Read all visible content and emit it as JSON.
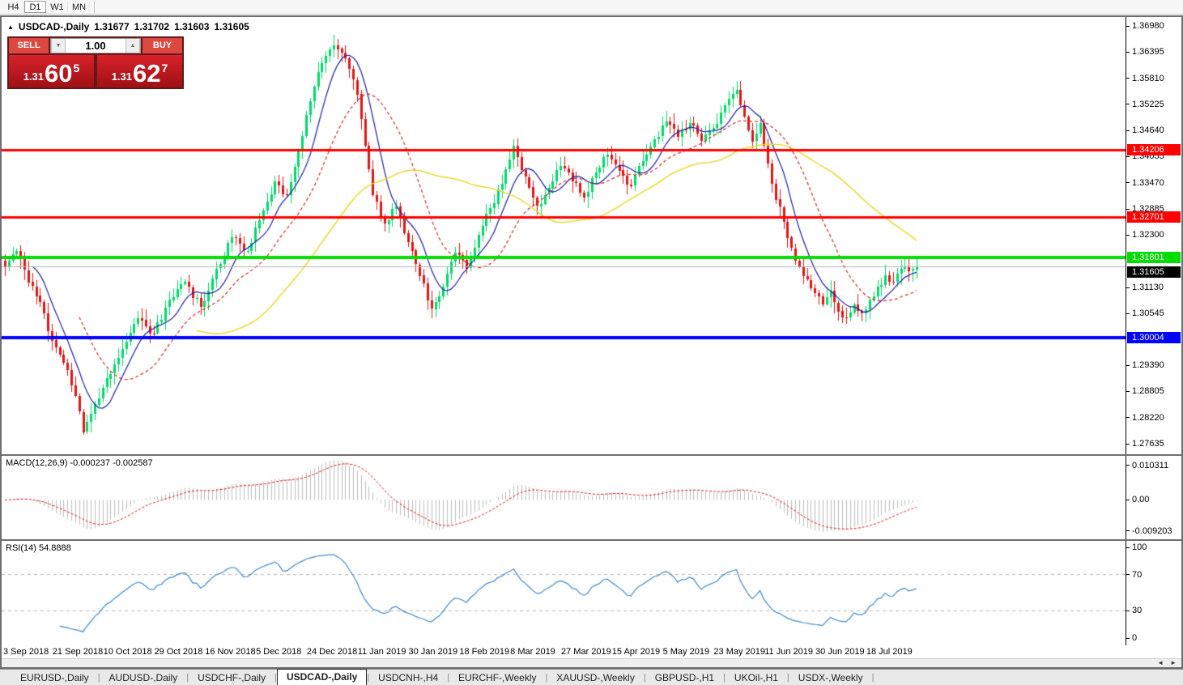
{
  "toolbar": {
    "timeframes": [
      {
        "label": "H4",
        "active": false
      },
      {
        "label": "D1",
        "active": true
      },
      {
        "label": "W1",
        "active": false
      },
      {
        "label": "MN",
        "active": false
      }
    ]
  },
  "chart": {
    "symbol": "USDCAD-,Daily",
    "open": "1.31677",
    "high": "1.31702",
    "low": "1.31603",
    "close": "1.31605",
    "collapse_icon": "▲"
  },
  "trade_panel": {
    "sell_label": "SELL",
    "buy_label": "BUY",
    "volume": "1.00",
    "spin_down": "▼",
    "spin_up": "▲",
    "sell_small": "1.31",
    "sell_big": "60",
    "sell_sup": "5",
    "buy_small": "1.31",
    "buy_big": "62",
    "buy_sup": "7"
  },
  "indicators": {
    "macd_label": "MACD(12,26,9) -0.000237 -0.002587",
    "rsi_label": "RSI(14) 54.8888"
  },
  "scrollbar": {
    "left_arrow": "◄",
    "right_arrow": "►"
  },
  "tabs": [
    {
      "label": "EURUSD-,Daily",
      "active": false
    },
    {
      "label": "AUDUSD-,Daily",
      "active": false
    },
    {
      "label": "USDCHF-,Daily",
      "active": false
    },
    {
      "label": "USDCAD-,Daily",
      "active": true
    },
    {
      "label": "USDCNH-,H4",
      "active": false
    },
    {
      "label": "EURCHF-,Weekly",
      "active": false
    },
    {
      "label": "XAUUSD-,Weekly",
      "active": false
    },
    {
      "label": "GBPUSD-,H1",
      "active": false
    },
    {
      "label": "UKOil-,H1",
      "active": false
    },
    {
      "label": "USDX-,Weekly",
      "active": false
    }
  ],
  "chart_data": {
    "type": "candlestick",
    "symbol": "USDCAD",
    "timeframe": "Daily",
    "ohlc_current": {
      "open": 1.31677,
      "high": 1.31702,
      "low": 1.31603,
      "close": 1.31605
    },
    "bid": 1.31605,
    "ask": 1.31627,
    "ylim": [
      1.27399,
      1.37179
    ],
    "y_ticks": [
      "1.36980",
      "1.36395",
      "1.35810",
      "1.35225",
      "1.34640",
      "1.34055",
      "1.33470",
      "1.32885",
      "1.32300",
      "1.31130",
      "1.30545",
      "1.29390",
      "1.28805",
      "1.28220",
      "1.27635"
    ],
    "x_labels": [
      {
        "label": "3 Sep 2018",
        "index": 0
      },
      {
        "label": "21 Sep 2018",
        "index": 13
      },
      {
        "label": "10 Oct 2018",
        "index": 26
      },
      {
        "label": "29 Oct 2018",
        "index": 39
      },
      {
        "label": "16 Nov 2018",
        "index": 52
      },
      {
        "label": "5 Dec 2018",
        "index": 65
      },
      {
        "label": "24 Dec 2018",
        "index": 78
      },
      {
        "label": "11 Jan 2019",
        "index": 91
      },
      {
        "label": "30 Jan 2019",
        "index": 104
      },
      {
        "label": "18 Feb 2019",
        "index": 117
      },
      {
        "label": "8 Mar 2019",
        "index": 130
      },
      {
        "label": "27 Mar 2019",
        "index": 143
      },
      {
        "label": "15 Apr 2019",
        "index": 156
      },
      {
        "label": "5 May 2019",
        "index": 169
      },
      {
        "label": "23 May 2019",
        "index": 182
      },
      {
        "label": "11 Jun 2019",
        "index": 195
      },
      {
        "label": "30 Jun 2019",
        "index": 208
      },
      {
        "label": "18 Jul 2019",
        "index": 221
      }
    ],
    "candles_count": 234,
    "close_anchors": [
      [
        0,
        1.316
      ],
      [
        3,
        1.3195
      ],
      [
        6,
        1.3125
      ],
      [
        9,
        1.308
      ],
      [
        12,
        1.2995
      ],
      [
        15,
        1.2945
      ],
      [
        18,
        1.287
      ],
      [
        20,
        1.279
      ],
      [
        22,
        1.283
      ],
      [
        26,
        1.291
      ],
      [
        30,
        1.2975
      ],
      [
        34,
        1.3045
      ],
      [
        38,
        1.301
      ],
      [
        42,
        1.3085
      ],
      [
        46,
        1.3125
      ],
      [
        50,
        1.307
      ],
      [
        54,
        1.3155
      ],
      [
        58,
        1.3225
      ],
      [
        62,
        1.3195
      ],
      [
        66,
        1.3285
      ],
      [
        69,
        1.335
      ],
      [
        72,
        1.332
      ],
      [
        75,
        1.342
      ],
      [
        78,
        1.353
      ],
      [
        81,
        1.3615
      ],
      [
        84,
        1.3655
      ],
      [
        87,
        1.3625
      ],
      [
        90,
        1.3545
      ],
      [
        92,
        1.343
      ],
      [
        94,
        1.332
      ],
      [
        97,
        1.3255
      ],
      [
        100,
        1.3295
      ],
      [
        103,
        1.3215
      ],
      [
        106,
        1.314
      ],
      [
        109,
        1.3065
      ],
      [
        112,
        1.3115
      ],
      [
        115,
        1.319
      ],
      [
        118,
        1.3155
      ],
      [
        121,
        1.323
      ],
      [
        124,
        1.329
      ],
      [
        127,
        1.3345
      ],
      [
        130,
        1.343
      ],
      [
        133,
        1.336
      ],
      [
        136,
        1.3295
      ],
      [
        139,
        1.3335
      ],
      [
        142,
        1.3385
      ],
      [
        145,
        1.335
      ],
      [
        148,
        1.3315
      ],
      [
        151,
        1.337
      ],
      [
        154,
        1.341
      ],
      [
        157,
        1.3375
      ],
      [
        160,
        1.334
      ],
      [
        163,
        1.3395
      ],
      [
        166,
        1.3445
      ],
      [
        169,
        1.3485
      ],
      [
        172,
        1.345
      ],
      [
        175,
        1.348
      ],
      [
        178,
        1.344
      ],
      [
        181,
        1.347
      ],
      [
        184,
        1.352
      ],
      [
        187,
        1.3555
      ],
      [
        189,
        1.3495
      ],
      [
        191,
        1.344
      ],
      [
        193,
        1.348
      ],
      [
        195,
        1.339
      ],
      [
        197,
        1.331
      ],
      [
        199,
        1.326
      ],
      [
        201,
        1.32
      ],
      [
        203,
        1.316
      ],
      [
        205,
        1.313
      ],
      [
        207,
        1.31
      ],
      [
        209,
        1.3075
      ],
      [
        211,
        1.3105
      ],
      [
        213,
        1.306
      ],
      [
        215,
        1.3045
      ],
      [
        217,
        1.3075
      ],
      [
        219,
        1.3055
      ],
      [
        221,
        1.3085
      ],
      [
        223,
        1.3115
      ],
      [
        225,
        1.314
      ],
      [
        227,
        1.3125
      ],
      [
        229,
        1.3155
      ],
      [
        231,
        1.315
      ],
      [
        233,
        1.31605
      ]
    ],
    "noise_amplitude": 0.0009,
    "wick_amplitude": 0.0022,
    "colors": {
      "up": "#00d96a",
      "down": "#e01616",
      "background": "#ffffff"
    },
    "moving_averages": [
      {
        "period": 8,
        "color": "#1c1ca8",
        "style": "solid"
      },
      {
        "period": 20,
        "color": "#d42424",
        "style": "dash"
      },
      {
        "period": 50,
        "color": "#e8d820",
        "style": "solid"
      }
    ],
    "levels": [
      {
        "price": 1.34206,
        "label": "1.34206",
        "color": "#fe0000",
        "width": 3
      },
      {
        "price": 1.32701,
        "label": "1.32701",
        "color": "#fe0000",
        "width": 3
      },
      {
        "price": 1.31801,
        "label": "1.31801",
        "color": "#00dd00",
        "width": 4
      },
      {
        "price": 1.30004,
        "label": "1.30004",
        "color": "#0000fe",
        "width": 4
      }
    ],
    "current_price_line": {
      "price": 1.31605,
      "label": "1.31605",
      "line_color": "#b4b4b4",
      "badge_bg": "#000000"
    },
    "macd": {
      "fast": 12,
      "slow": 26,
      "signal": 9,
      "value": -0.000237,
      "signal_value": -0.002587,
      "axis_ticks": [
        {
          "label": "0.010311",
          "value": 0.010311
        },
        {
          "label": "0.00",
          "value": 0
        },
        {
          "label": "-0.009203",
          "value": -0.009203
        }
      ],
      "ymax": 0.0131,
      "ymin": -0.0117,
      "hist_color": "#bdbdbd",
      "signal_color": "#dd1a1a"
    },
    "rsi": {
      "period": 14,
      "value": 54.8888,
      "axis_ticks": [
        {
          "label": "100",
          "value": 100
        },
        {
          "label": "70",
          "value": 70
        },
        {
          "label": "30",
          "value": 30
        },
        {
          "label": "0",
          "value": 0
        }
      ],
      "levels": [
        70,
        30
      ],
      "line_color": "#3d89c9",
      "level_color": "#b5b5b5"
    }
  }
}
